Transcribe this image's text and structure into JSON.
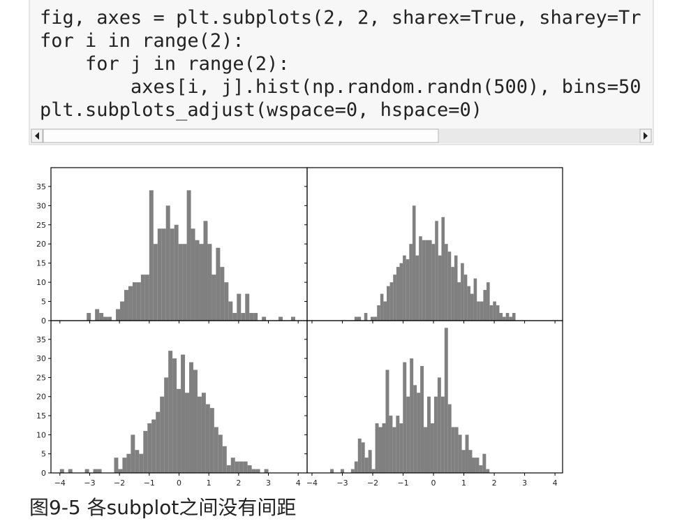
{
  "code": {
    "lines": [
      "fig, axes = plt.subplots(2, 2, sharex=True, sharey=Tr",
      "for i in range(2):",
      "    for j in range(2):",
      "        axes[i, j].hist(np.random.randn(500), bins=50",
      "plt.subplots_adjust(wspace=0, hspace=0)"
    ]
  },
  "chart_data": [
    {
      "type": "histogram",
      "color": "#808080",
      "xlim": [
        -4.3,
        4.3
      ],
      "ylim": [
        0,
        39.9
      ],
      "xticks": [
        -4,
        -3,
        -2,
        -1,
        0,
        1,
        2,
        3,
        4
      ],
      "yticks": [
        0,
        5,
        10,
        15,
        20,
        25,
        30,
        35
      ],
      "bins": [
        -3.1,
        -2.96,
        -2.82,
        -2.68,
        -2.54,
        -2.4,
        -2.26,
        -2.12,
        -1.98,
        -1.84,
        -1.7,
        -1.56,
        -1.42,
        -1.28,
        -1.14,
        -1.0,
        -0.86,
        -0.72,
        -0.58,
        -0.44,
        -0.3,
        -0.16,
        -0.02,
        0.12,
        0.26,
        0.4,
        0.54,
        0.68,
        0.82,
        0.96,
        1.1,
        1.24,
        1.38,
        1.52,
        1.66,
        1.8,
        1.94,
        2.08,
        2.22,
        2.36,
        2.5,
        2.64,
        2.78,
        2.92,
        3.06,
        3.2,
        3.34,
        3.48,
        3.62,
        3.76,
        3.9
      ],
      "values": [
        2,
        0,
        3,
        2,
        1,
        1,
        0,
        3,
        5,
        8,
        9,
        10,
        10,
        12,
        12,
        34,
        20,
        24,
        24,
        30,
        24,
        25,
        20,
        20,
        34,
        24,
        21,
        20,
        26,
        20,
        12,
        19,
        14,
        10,
        5,
        2,
        7,
        2,
        7,
        2,
        2,
        0,
        1,
        0,
        0,
        0,
        1,
        0,
        0,
        1
      ]
    },
    {
      "type": "histogram",
      "color": "#808080",
      "xlim": [
        -4.16,
        4.25
      ],
      "ylim": [
        0,
        39.9
      ],
      "xticks": [
        -4,
        -3,
        -2,
        -1,
        0,
        1,
        2,
        3,
        4
      ],
      "yticks": [
        0,
        5,
        10,
        15,
        20,
        25,
        30,
        35
      ],
      "bins": [
        -2.6,
        -2.494,
        -2.388,
        -2.282,
        -2.176,
        -2.07,
        -1.964,
        -1.858,
        -1.752,
        -1.646,
        -1.54,
        -1.434,
        -1.328,
        -1.222,
        -1.116,
        -1.01,
        -0.904,
        -0.798,
        -0.692,
        -0.586,
        -0.48,
        -0.374,
        -0.268,
        -0.162,
        -0.056,
        0.05,
        0.156,
        0.262,
        0.368,
        0.474,
        0.58,
        0.686,
        0.792,
        0.898,
        1.004,
        1.11,
        1.216,
        1.322,
        1.428,
        1.534,
        1.64,
        1.746,
        1.852,
        1.958,
        2.064,
        2.17,
        2.276,
        2.382,
        2.488,
        2.594,
        2.7
      ],
      "values": [
        1,
        1,
        0,
        2,
        0,
        1,
        1,
        4,
        7,
        5,
        9,
        10,
        12,
        14,
        15,
        17,
        16,
        20,
        30,
        17,
        22,
        21,
        21,
        21,
        20,
        26,
        17,
        27,
        20,
        18,
        14,
        17,
        10,
        15,
        12,
        9,
        7,
        11,
        5,
        5,
        8,
        10,
        4,
        5,
        4,
        2,
        1,
        2,
        1,
        2
      ]
    },
    {
      "type": "histogram",
      "color": "#808080",
      "xlim": [
        -4.3,
        4.3
      ],
      "ylim": [
        0,
        39.9
      ],
      "xticks": [
        {
          "value": -4,
          "label": "−4"
        },
        {
          "value": -3,
          "label": "−3"
        },
        {
          "value": -2,
          "label": "−2"
        },
        {
          "value": -1,
          "label": "−1"
        },
        0,
        1,
        2,
        3,
        4
      ],
      "yticks": [
        0,
        5,
        10,
        15,
        20,
        25,
        30,
        35
      ],
      "bins": [
        -4.0,
        -3.86,
        -3.72,
        -3.58,
        -3.44,
        -3.3,
        -3.16,
        -3.02,
        -2.88,
        -2.74,
        -2.6,
        -2.46,
        -2.32,
        -2.18,
        -2.04,
        -1.9,
        -1.76,
        -1.62,
        -1.48,
        -1.34,
        -1.2,
        -1.06,
        -0.92,
        -0.78,
        -0.64,
        -0.5,
        -0.36,
        -0.22,
        -0.08,
        0.06,
        0.2,
        0.34,
        0.48,
        0.62,
        0.76,
        0.9,
        1.04,
        1.18,
        1.32,
        1.46,
        1.6,
        1.74,
        1.88,
        2.02,
        2.16,
        2.3,
        2.44,
        2.58,
        2.72,
        2.86,
        3.0
      ],
      "values": [
        1,
        0,
        1,
        0,
        0,
        0,
        1,
        0,
        1,
        1,
        0,
        0,
        0,
        4,
        1,
        4,
        5,
        10,
        6,
        5,
        11,
        13,
        14,
        16,
        20,
        25,
        32,
        30,
        22,
        31,
        21,
        29,
        27,
        20,
        21,
        18,
        17,
        12,
        10,
        7,
        2,
        4,
        3,
        3,
        3,
        2,
        1,
        1,
        0,
        1
      ]
    },
    {
      "type": "histogram",
      "color": "#808080",
      "xlim": [
        -4.16,
        4.25
      ],
      "ylim": [
        0,
        39.9
      ],
      "xticks": [
        {
          "value": -4,
          "label": "−4"
        },
        {
          "value": -3,
          "label": "−3"
        },
        {
          "value": -2,
          "label": "−2"
        },
        {
          "value": -1,
          "label": "−1"
        },
        0,
        1,
        2,
        3,
        4
      ],
      "yticks": [
        0,
        5,
        10,
        15,
        20,
        25,
        30,
        35
      ],
      "bins": [
        -3.4,
        -3.286,
        -3.172,
        -3.058,
        -2.944,
        -2.83,
        -2.716,
        -2.602,
        -2.488,
        -2.374,
        -2.26,
        -2.146,
        -2.032,
        -1.918,
        -1.804,
        -1.69,
        -1.576,
        -1.462,
        -1.348,
        -1.234,
        -1.12,
        -1.006,
        -0.892,
        -0.778,
        -0.664,
        -0.55,
        -0.436,
        -0.322,
        -0.208,
        -0.094,
        0.02,
        0.134,
        0.248,
        0.362,
        0.476,
        0.59,
        0.704,
        0.818,
        0.932,
        1.046,
        1.16,
        1.274,
        1.388,
        1.502,
        1.616,
        1.73,
        1.844,
        1.958,
        2.072,
        2.186,
        2.3
      ],
      "values": [
        1,
        0,
        0,
        1,
        0,
        0,
        1,
        3,
        9,
        8,
        4,
        6,
        1,
        13,
        12,
        13,
        27,
        15,
        12,
        15,
        13,
        29,
        20,
        30,
        23,
        21,
        28,
        12,
        20,
        13,
        20,
        25,
        20,
        38,
        18,
        12,
        12,
        10,
        6,
        10,
        6,
        4,
        4,
        2,
        5,
        1,
        0,
        0,
        0,
        0
      ]
    }
  ],
  "caption": "图9-5 各subplot之间没有间距"
}
